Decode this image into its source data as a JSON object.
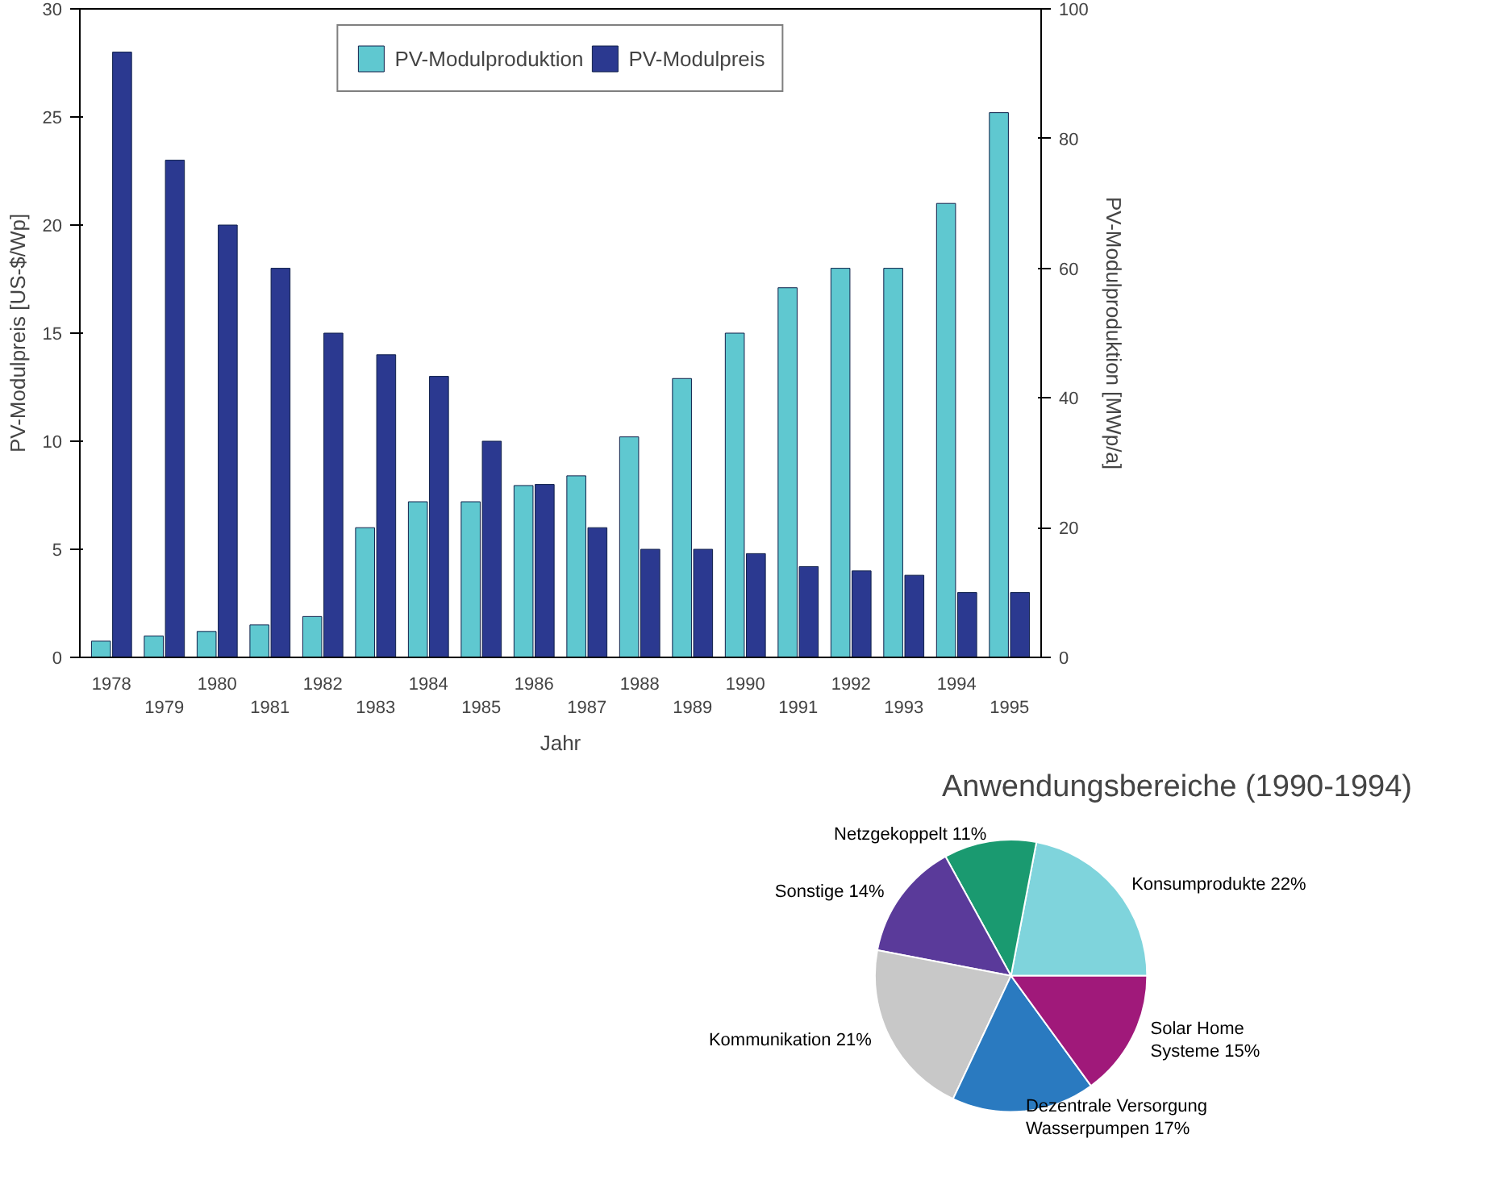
{
  "chart_data": [
    {
      "type": "bar",
      "xlabel": "Jahr",
      "ylabel": "PV-Modulpreis [US-$/Wp]",
      "y2label": "PV-Modulproduktion [MWp/a]",
      "categories": [
        "1978",
        "1979",
        "1980",
        "1981",
        "1982",
        "1983",
        "1984",
        "1985",
        "1986",
        "1987",
        "1988",
        "1989",
        "1990",
        "1991",
        "1992",
        "1993",
        "1994",
        "1995"
      ],
      "series": [
        {
          "name": "PV-Modulproduktion",
          "color": "#5fc8d0",
          "axis": "y2",
          "values": [
            2.5,
            3.3,
            4,
            5,
            6.3,
            20,
            24,
            24,
            26.5,
            28,
            34,
            43,
            50,
            57,
            60,
            60,
            70,
            84
          ]
        },
        {
          "name": "PV-Modulpreis",
          "color": "#2b3990",
          "values": [
            28,
            23,
            20,
            18,
            15,
            14,
            13,
            10,
            8,
            6,
            5,
            5,
            4.8,
            4.2,
            4,
            3.8,
            3,
            3
          ]
        }
      ],
      "ylim": [
        0,
        30
      ],
      "yticks": [
        0,
        5,
        10,
        15,
        20,
        25,
        30
      ],
      "y2lim": [
        0,
        100
      ],
      "y2ticks": [
        0,
        20,
        40,
        60,
        80,
        100
      ],
      "legend": "top",
      "grid": false
    },
    {
      "type": "pie",
      "title": "Anwendungsbereiche (1990-1994)",
      "categories": [
        "Konsumprodukte",
        "Netzgekoppelt",
        "Sonstige",
        "Kommunikation",
        "Dezentrale Versorgung\nWasserpumpen",
        "Solar Home\nSysteme"
      ],
      "values": [
        22,
        11,
        14,
        21,
        17,
        15
      ],
      "value_labels": [
        "22%",
        "11%",
        "14%",
        "21%",
        "17%",
        "15%"
      ],
      "colors": [
        "#7fd4dc",
        "#1a9a70",
        "#5a3a9a",
        "#c8c8c8",
        "#2a7ac0",
        "#a0197a"
      ]
    }
  ]
}
